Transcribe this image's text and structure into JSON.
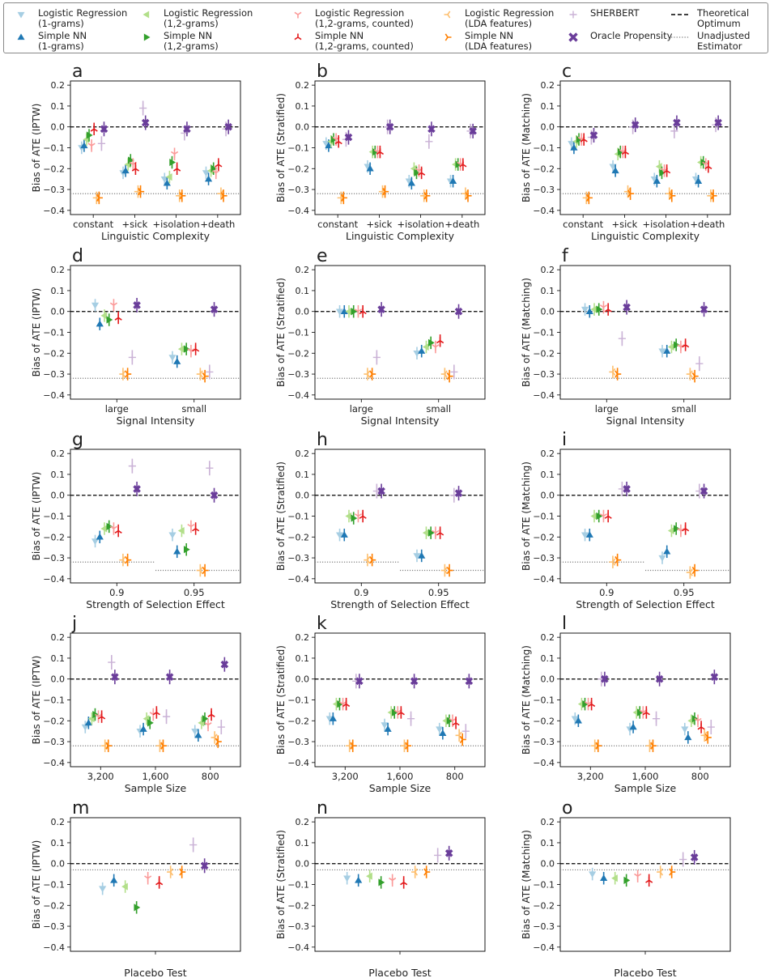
{
  "legend": [
    {
      "label": "Logistic Regression\n(1-grams)",
      "color": "#a6cee3",
      "marker": "tri_down"
    },
    {
      "label": "Simple NN\n(1-grams)",
      "color": "#1f78b4",
      "marker": "tri_up"
    },
    {
      "label": "Logistic Regression\n(1,2-grams)",
      "color": "#b2df8a",
      "marker": "tri_left"
    },
    {
      "label": "Simple NN\n(1,2-grams)",
      "color": "#33a02c",
      "marker": "tri_right"
    },
    {
      "label": "Logistic Regression\n(1,2-grams, counted)",
      "color": "#fb9a99",
      "marker": "y_down"
    },
    {
      "label": "Simple NN\n(1,2-grams, counted)",
      "color": "#e31a1c",
      "marker": "y_up"
    },
    {
      "label": "Logistic Regression\n(LDA features)",
      "color": "#fdbf6f",
      "marker": "y_left"
    },
    {
      "label": "Simple NN\n(LDA features)",
      "color": "#ff7f00",
      "marker": "y_right"
    },
    {
      "label": "SHERBERT",
      "color": "#cab2d6",
      "marker": "plus"
    },
    {
      "label": "Oracle Propensity",
      "color": "#6a3d9a",
      "marker": "cross"
    },
    {
      "label": "Theoretical\nOptimum",
      "color": "#000000",
      "marker": "dashed"
    },
    {
      "label": "Unadjusted\nEstimator",
      "color": "#808080",
      "marker": "dotted"
    }
  ],
  "chart_data": {
    "type": "scatter",
    "ylim": [
      -0.42,
      0.22
    ],
    "yticks": [
      "0.2",
      "0.1",
      "0.0",
      "−0.1",
      "−0.2",
      "−0.3",
      "−0.4"
    ],
    "ylabels": [
      "Bias of ATE (IPTW)",
      "Bias of ATE (Stratified)",
      "Bias of ATE (Matching)"
    ],
    "rows": [
      {
        "xlabel": "Linguistic Complexity",
        "categories": [
          "constant",
          "+sick",
          "+isolation",
          "+death"
        ],
        "letters": [
          "a",
          "b",
          "c"
        ],
        "unadjusted": [
          [
            -0.32,
            -0.32
          ]
        ],
        "panels": [
          {
            "series": [
              [
                -0.1,
                -0.22,
                -0.25,
                -0.22
              ],
              [
                -0.09,
                -0.21,
                -0.27,
                -0.25
              ],
              [
                -0.06,
                -0.18,
                -0.24,
                -0.21
              ],
              [
                -0.04,
                -0.16,
                -0.17,
                -0.2
              ],
              [
                -0.09,
                -0.18,
                -0.13,
                -0.22
              ],
              [
                -0.01,
                -0.2,
                -0.2,
                -0.18
              ],
              [
                -0.34,
                -0.31,
                -0.33,
                -0.32
              ],
              [
                -0.34,
                -0.31,
                -0.33,
                -0.33
              ],
              [
                -0.08,
                0.09,
                -0.03,
                -0.01
              ],
              [
                -0.01,
                0.02,
                -0.01,
                0.0
              ]
            ]
          },
          {
            "series": [
              [
                -0.08,
                -0.19,
                -0.26,
                -0.26
              ],
              [
                -0.09,
                -0.2,
                -0.27,
                -0.26
              ],
              [
                -0.07,
                -0.12,
                -0.2,
                -0.18
              ],
              [
                -0.06,
                -0.12,
                -0.22,
                -0.18
              ],
              [
                -0.06,
                -0.12,
                -0.21,
                -0.18
              ],
              [
                -0.07,
                -0.12,
                -0.22,
                -0.18
              ],
              [
                -0.34,
                -0.31,
                -0.33,
                -0.32
              ],
              [
                -0.34,
                -0.31,
                -0.33,
                -0.33
              ],
              [
                -0.06,
                0.0,
                -0.07,
                -0.02
              ],
              [
                -0.05,
                0.0,
                -0.01,
                -0.02
              ]
            ]
          },
          {
            "series": [
              [
                -0.08,
                -0.19,
                -0.25,
                -0.25
              ],
              [
                -0.1,
                -0.21,
                -0.26,
                -0.26
              ],
              [
                -0.07,
                -0.13,
                -0.19,
                -0.17
              ],
              [
                -0.06,
                -0.12,
                -0.22,
                -0.17
              ],
              [
                -0.06,
                -0.12,
                -0.21,
                -0.18
              ],
              [
                -0.06,
                -0.12,
                -0.21,
                -0.19
              ],
              [
                -0.34,
                -0.31,
                -0.32,
                -0.33
              ],
              [
                -0.34,
                -0.32,
                -0.33,
                -0.33
              ],
              [
                -0.05,
                0.0,
                -0.02,
                0.01
              ],
              [
                -0.04,
                0.01,
                0.02,
                0.02
              ]
            ]
          }
        ]
      },
      {
        "xlabel": "Signal Intensity",
        "categories": [
          "large",
          "small"
        ],
        "letters": [
          "d",
          "e",
          "f"
        ],
        "unadjusted": [
          [
            -0.32,
            -0.32
          ]
        ],
        "panels": [
          {
            "series": [
              [
                0.03,
                -0.22
              ],
              [
                -0.06,
                -0.24
              ],
              [
                -0.02,
                -0.18
              ],
              [
                -0.04,
                -0.18
              ],
              [
                0.03,
                -0.19
              ],
              [
                -0.03,
                -0.18
              ],
              [
                -0.3,
                -0.3
              ],
              [
                -0.3,
                -0.31
              ],
              [
                -0.22,
                -0.29
              ],
              [
                0.03,
                0.01
              ]
            ]
          },
          {
            "series": [
              [
                0.0,
                -0.2
              ],
              [
                0.0,
                -0.19
              ],
              [
                0.0,
                -0.17
              ],
              [
                0.0,
                -0.15
              ],
              [
                0.0,
                -0.17
              ],
              [
                0.0,
                -0.14
              ],
              [
                -0.3,
                -0.3
              ],
              [
                -0.3,
                -0.31
              ],
              [
                -0.22,
                -0.29
              ],
              [
                0.01,
                0.0
              ]
            ]
          },
          {
            "series": [
              [
                0.01,
                -0.19
              ],
              [
                0.0,
                -0.19
              ],
              [
                0.01,
                -0.17
              ],
              [
                0.01,
                -0.16
              ],
              [
                0.02,
                -0.17
              ],
              [
                0.01,
                -0.16
              ],
              [
                -0.29,
                -0.3
              ],
              [
                -0.3,
                -0.31
              ],
              [
                -0.13,
                -0.25
              ],
              [
                0.02,
                0.01
              ]
            ]
          }
        ]
      },
      {
        "xlabel": "Strength of Selection Effect",
        "categories": [
          "0.9",
          "0.95"
        ],
        "letters": [
          "g",
          "h",
          "i"
        ],
        "unadjusted": [
          [
            -0.32,
            -0.32
          ],
          [
            -0.36,
            -0.36
          ]
        ],
        "panels": [
          {
            "series": [
              [
                -0.22,
                -0.19
              ],
              [
                -0.2,
                -0.27
              ],
              [
                -0.16,
                -0.17
              ],
              [
                -0.15,
                -0.26
              ],
              [
                -0.16,
                -0.15
              ],
              [
                -0.17,
                -0.16
              ],
              [
                -0.31,
                -0.36
              ],
              [
                -0.31,
                -0.36
              ],
              [
                0.14,
                0.13
              ],
              [
                0.03,
                0.0
              ]
            ]
          },
          {
            "series": [
              [
                -0.19,
                -0.29
              ],
              [
                -0.19,
                -0.29
              ],
              [
                -0.1,
                -0.18
              ],
              [
                -0.11,
                -0.18
              ],
              [
                -0.1,
                -0.18
              ],
              [
                -0.1,
                -0.18
              ],
              [
                -0.31,
                -0.36
              ],
              [
                -0.31,
                -0.36
              ],
              [
                0.02,
                0.0
              ],
              [
                0.02,
                0.01
              ]
            ]
          },
          {
            "series": [
              [
                -0.19,
                -0.3
              ],
              [
                -0.19,
                -0.27
              ],
              [
                -0.1,
                -0.17
              ],
              [
                -0.1,
                -0.16
              ],
              [
                -0.1,
                -0.17
              ],
              [
                -0.1,
                -0.16
              ],
              [
                -0.32,
                -0.37
              ],
              [
                -0.31,
                -0.36
              ],
              [
                0.03,
                0.02
              ],
              [
                0.03,
                0.02
              ]
            ]
          }
        ]
      },
      {
        "xlabel": "Sample Size",
        "categories": [
          "3,200",
          "1,600",
          "800"
        ],
        "letters": [
          "j",
          "k",
          "l"
        ],
        "unadjusted": [
          [
            -0.32,
            -0.32
          ]
        ],
        "panels": [
          {
            "series": [
              [
                -0.23,
                -0.25,
                -0.25
              ],
              [
                -0.21,
                -0.24,
                -0.27
              ],
              [
                -0.19,
                -0.19,
                -0.21
              ],
              [
                -0.17,
                -0.21,
                -0.19
              ],
              [
                -0.18,
                -0.17,
                -0.22
              ],
              [
                -0.18,
                -0.16,
                -0.17
              ],
              [
                -0.32,
                -0.32,
                -0.28
              ],
              [
                -0.32,
                -0.32,
                -0.3
              ],
              [
                0.08,
                -0.18,
                -0.23
              ],
              [
                0.01,
                0.01,
                0.07
              ]
            ]
          },
          {
            "series": [
              [
                -0.19,
                -0.22,
                -0.24
              ],
              [
                -0.19,
                -0.24,
                -0.26
              ],
              [
                -0.12,
                -0.16,
                -0.2
              ],
              [
                -0.12,
                -0.16,
                -0.2
              ],
              [
                -0.12,
                -0.16,
                -0.2
              ],
              [
                -0.12,
                -0.16,
                -0.21
              ],
              [
                -0.32,
                -0.32,
                -0.27
              ],
              [
                -0.32,
                -0.32,
                -0.29
              ],
              [
                -0.01,
                -0.19,
                -0.25
              ],
              [
                -0.01,
                -0.01,
                -0.01
              ]
            ]
          },
          {
            "series": [
              [
                -0.19,
                -0.24,
                -0.24
              ],
              [
                -0.2,
                -0.23,
                -0.28
              ],
              [
                -0.12,
                -0.16,
                -0.2
              ],
              [
                -0.12,
                -0.16,
                -0.19
              ],
              [
                -0.12,
                -0.16,
                -0.2
              ],
              [
                -0.12,
                -0.16,
                -0.23
              ],
              [
                -0.32,
                -0.32,
                -0.27
              ],
              [
                -0.32,
                -0.32,
                -0.28
              ],
              [
                0.0,
                -0.19,
                -0.23
              ],
              [
                0.0,
                0.0,
                0.01
              ]
            ]
          }
        ]
      },
      {
        "xlabel": "Placebo Test",
        "categories": [
          ""
        ],
        "letters": [
          "m",
          "n",
          "o"
        ],
        "unadjusted": [
          [
            -0.03
          ]
        ],
        "panels": [
          {
            "series": [
              [
                -0.12
              ],
              [
                -0.08
              ],
              [
                -0.11
              ],
              [
                -0.21
              ],
              [
                -0.07
              ],
              [
                -0.09
              ],
              [
                -0.04
              ],
              [
                -0.04
              ],
              [
                0.09
              ],
              [
                -0.01
              ]
            ]
          },
          {
            "series": [
              [
                -0.07
              ],
              [
                -0.08
              ],
              [
                -0.06
              ],
              [
                -0.09
              ],
              [
                -0.08
              ],
              [
                -0.09
              ],
              [
                -0.04
              ],
              [
                -0.04
              ],
              [
                0.04
              ],
              [
                0.05
              ]
            ]
          },
          {
            "series": [
              [
                -0.05
              ],
              [
                -0.07
              ],
              [
                -0.07
              ],
              [
                -0.08
              ],
              [
                -0.06
              ],
              [
                -0.08
              ],
              [
                -0.04
              ],
              [
                -0.04
              ],
              [
                0.02
              ],
              [
                0.03
              ]
            ]
          }
        ]
      }
    ]
  }
}
